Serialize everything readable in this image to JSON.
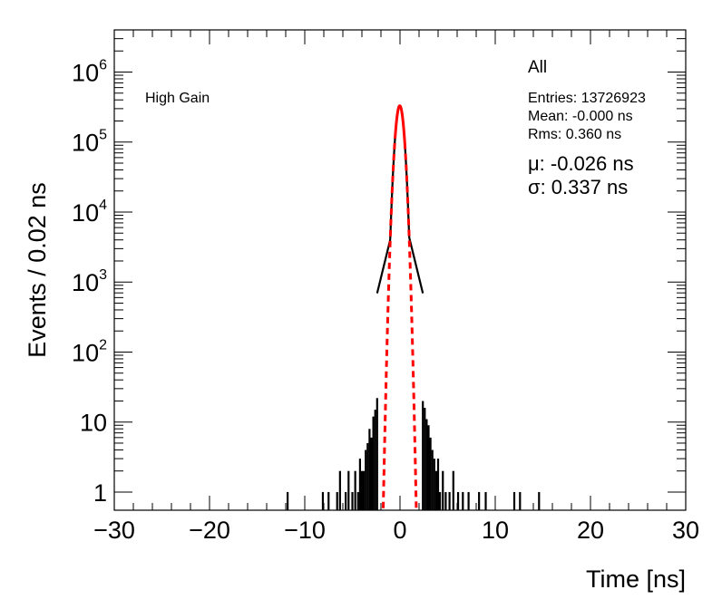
{
  "chart_data": {
    "type": "histogram",
    "title": "",
    "xlabel": "Time [ns]",
    "ylabel": "Events / 0.02 ns",
    "xlim": [
      -30,
      30
    ],
    "ylim": [
      0.55,
      4000000
    ],
    "yscale": "log",
    "grid": false,
    "x_ticks": [
      -30,
      -20,
      -10,
      0,
      10,
      20,
      30
    ],
    "x_tick_labels": [
      "−30",
      "−20",
      "−10",
      "0",
      "10",
      "20",
      "30"
    ],
    "y_ticks": [
      {
        "value": 1,
        "base": "1",
        "exp": ""
      },
      {
        "value": 10,
        "base": "10",
        "exp": ""
      },
      {
        "value": 100,
        "base": "10",
        "exp": "2"
      },
      {
        "value": 1000,
        "base": "10",
        "exp": "3"
      },
      {
        "value": 10000,
        "base": "10",
        "exp": "4"
      },
      {
        "value": 100000,
        "base": "10",
        "exp": "5"
      },
      {
        "value": 1000000,
        "base": "10",
        "exp": "6"
      }
    ],
    "annotations": {
      "label": "High Gain",
      "stats_title": "All",
      "entries": "Entries: 13726923",
      "mean": "Mean: -0.000 ns",
      "rms": "Rms: 0.360 ns",
      "mu": "μ: -0.026 ns",
      "sigma": "σ: 0.337 ns"
    },
    "series": [
      {
        "kind": "histogram",
        "color": "#000000",
        "peak": 330000,
        "core_sigma": 0.337,
        "core_mean": -0.026,
        "tail_slope_per_ns": 0.78,
        "tail_amplitude": 15000,
        "points": [
          [
            -11.8,
            1
          ],
          [
            -8.1,
            1
          ],
          [
            -7.5,
            1
          ],
          [
            -6.6,
            1
          ],
          [
            -6.3,
            2
          ],
          [
            -5.7,
            1
          ],
          [
            -5.4,
            2
          ],
          [
            -5.0,
            1
          ],
          [
            -4.7,
            2
          ],
          [
            -4.4,
            1
          ],
          [
            -4.2,
            3
          ],
          [
            -4.0,
            2
          ],
          [
            -3.8,
            2
          ],
          [
            -3.6,
            4
          ],
          [
            -3.4,
            5
          ],
          [
            -3.2,
            8
          ],
          [
            -3.0,
            6
          ],
          [
            -2.8,
            12
          ],
          [
            -2.6,
            15
          ],
          [
            -2.4,
            22
          ],
          [
            2.4,
            20
          ],
          [
            2.6,
            16
          ],
          [
            2.8,
            11
          ],
          [
            3.0,
            9
          ],
          [
            3.2,
            6
          ],
          [
            3.4,
            4
          ],
          [
            3.6,
            3
          ],
          [
            3.8,
            2
          ],
          [
            4.0,
            3
          ],
          [
            4.2,
            1
          ],
          [
            4.5,
            2
          ],
          [
            4.8,
            1
          ],
          [
            5.2,
            1
          ],
          [
            5.6,
            2
          ],
          [
            6.1,
            1
          ],
          [
            6.6,
            1
          ],
          [
            7.2,
            1
          ],
          [
            8.3,
            1
          ],
          [
            9.0,
            1
          ],
          [
            12.0,
            1
          ],
          [
            12.6,
            1
          ],
          [
            14.6,
            1
          ]
        ]
      },
      {
        "kind": "gaussian_fit",
        "color": "#ff0000",
        "mean": -0.026,
        "sigma": 0.337,
        "amplitude": 330000,
        "solid_range": [
          -0.5,
          0.5
        ],
        "dashed_range": [
          -2.1,
          1.9
        ]
      }
    ]
  }
}
